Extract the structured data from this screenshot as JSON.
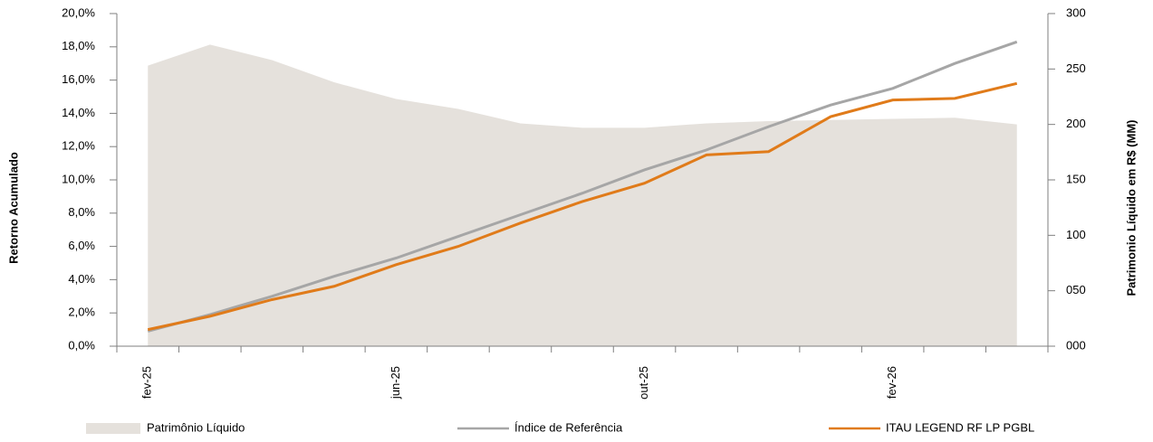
{
  "chart_data": {
    "type": "line",
    "y_label": "Retorno Acumulado",
    "y2_label": "Patrimonio Líquido em R$ (MM)",
    "categories": [
      "fev-25",
      null,
      null,
      null,
      "jun-25",
      null,
      null,
      null,
      "out-25",
      null,
      null,
      null,
      "fev-26",
      null,
      null
    ],
    "ylim": [
      0,
      20
    ],
    "yticks": [
      {
        "value": 0,
        "label": "0,0%"
      },
      {
        "value": 2,
        "label": "2,0%"
      },
      {
        "value": 4,
        "label": "4,0%"
      },
      {
        "value": 6,
        "label": "6,0%"
      },
      {
        "value": 8,
        "label": "8,0%"
      },
      {
        "value": 10,
        "label": "10,0%"
      },
      {
        "value": 12,
        "label": "12,0%"
      },
      {
        "value": 14,
        "label": "14,0%"
      },
      {
        "value": 16,
        "label": "16,0%"
      },
      {
        "value": 18,
        "label": "18,0%"
      },
      {
        "value": 20,
        "label": "20,0%"
      }
    ],
    "y2lim": [
      0,
      300
    ],
    "y2ticks": [
      {
        "value": 0,
        "label": "000"
      },
      {
        "value": 50,
        "label": "050"
      },
      100,
      150,
      200,
      250,
      300
    ],
    "series": [
      {
        "name": "Patrimônio Líquido",
        "kind": "area",
        "axis": "y2",
        "color": "#e5e1dc",
        "values": [
          253,
          272,
          258,
          238,
          223,
          214,
          201,
          197,
          197,
          201,
          203,
          204,
          205,
          206,
          200
        ]
      },
      {
        "name": "Índice de Referência",
        "kind": "line",
        "color": "#a6a6a6",
        "values": [
          0.9,
          1.9,
          3.0,
          4.2,
          5.3,
          6.6,
          7.9,
          9.2,
          10.6,
          11.8,
          13.2,
          14.5,
          15.5,
          17.0,
          18.3
        ]
      },
      {
        "name": "ITAU LEGEND RF LP PGBL",
        "kind": "line",
        "color": "#e07b1a",
        "values": [
          1.0,
          1.8,
          2.8,
          3.6,
          4.9,
          6.0,
          7.4,
          8.7,
          9.8,
          11.5,
          11.7,
          13.8,
          14.8,
          14.9,
          15.8
        ]
      }
    ]
  }
}
